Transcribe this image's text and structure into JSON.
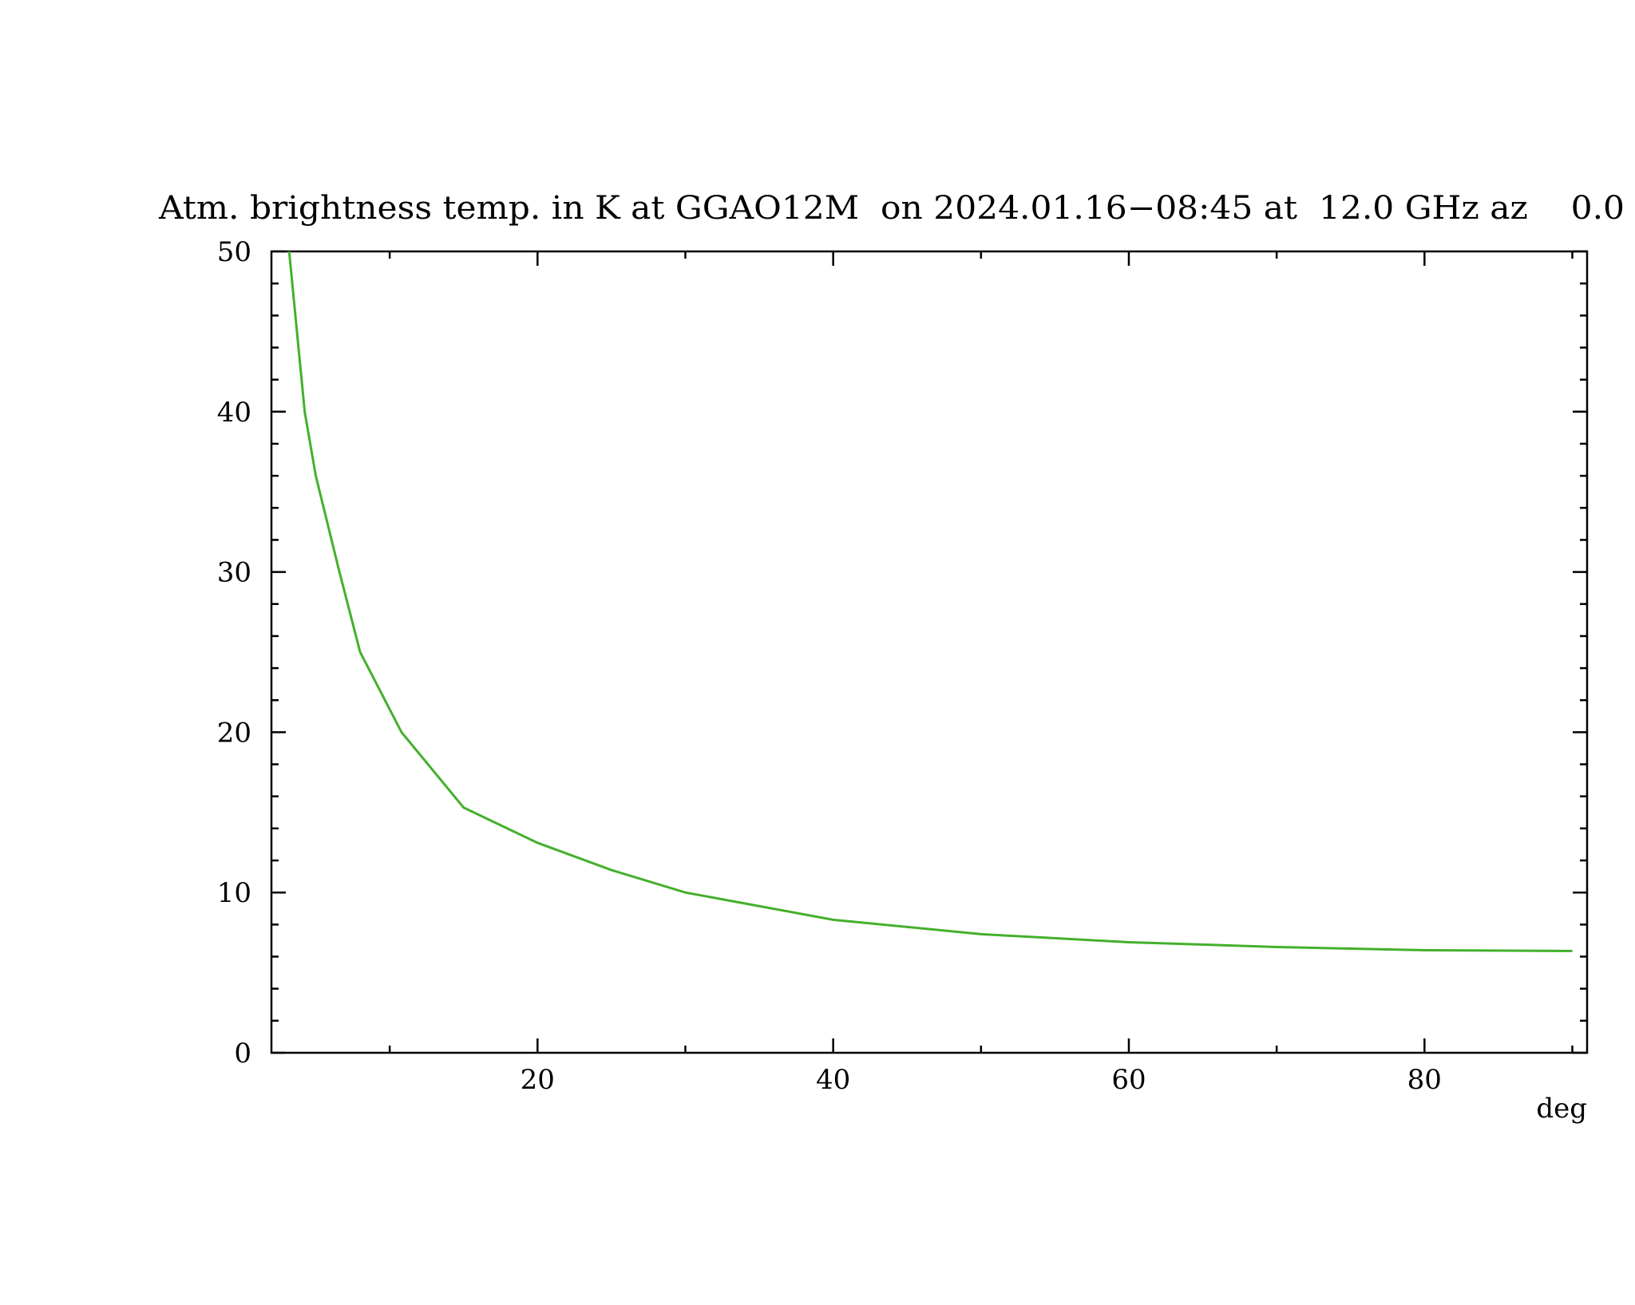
{
  "chart_data": {
    "type": "line",
    "title": "Atm. brightness temp. in K at GGAO12M  on 2024.01.16−08:45 at  12.0 GHz az    0.0",
    "x_label": "deg",
    "x": [
      3.2,
      4.25,
      5,
      6.6,
      8,
      10.8,
      15,
      20,
      25,
      30,
      40,
      50,
      60,
      70,
      80,
      90
    ],
    "series": [
      {
        "color": "#44b02c",
        "values": [
          50,
          40,
          36,
          30,
          25,
          20,
          15.3,
          13.1,
          11.4,
          10.0,
          8.3,
          7.4,
          6.9,
          6.6,
          6.4,
          6.35
        ]
      }
    ],
    "xlim": [
      2,
      91
    ],
    "ylim": [
      0,
      50
    ],
    "xticks": [
      20,
      40,
      60,
      80
    ],
    "yticks": [
      0,
      10,
      20,
      30,
      40,
      50
    ],
    "xminorticks": [
      10,
      30,
      50,
      70,
      90
    ],
    "yminorticks": [
      2,
      4,
      6,
      8,
      12,
      14,
      16,
      18,
      22,
      24,
      26,
      28,
      32,
      34,
      36,
      38,
      42,
      44,
      46,
      48
    ]
  }
}
